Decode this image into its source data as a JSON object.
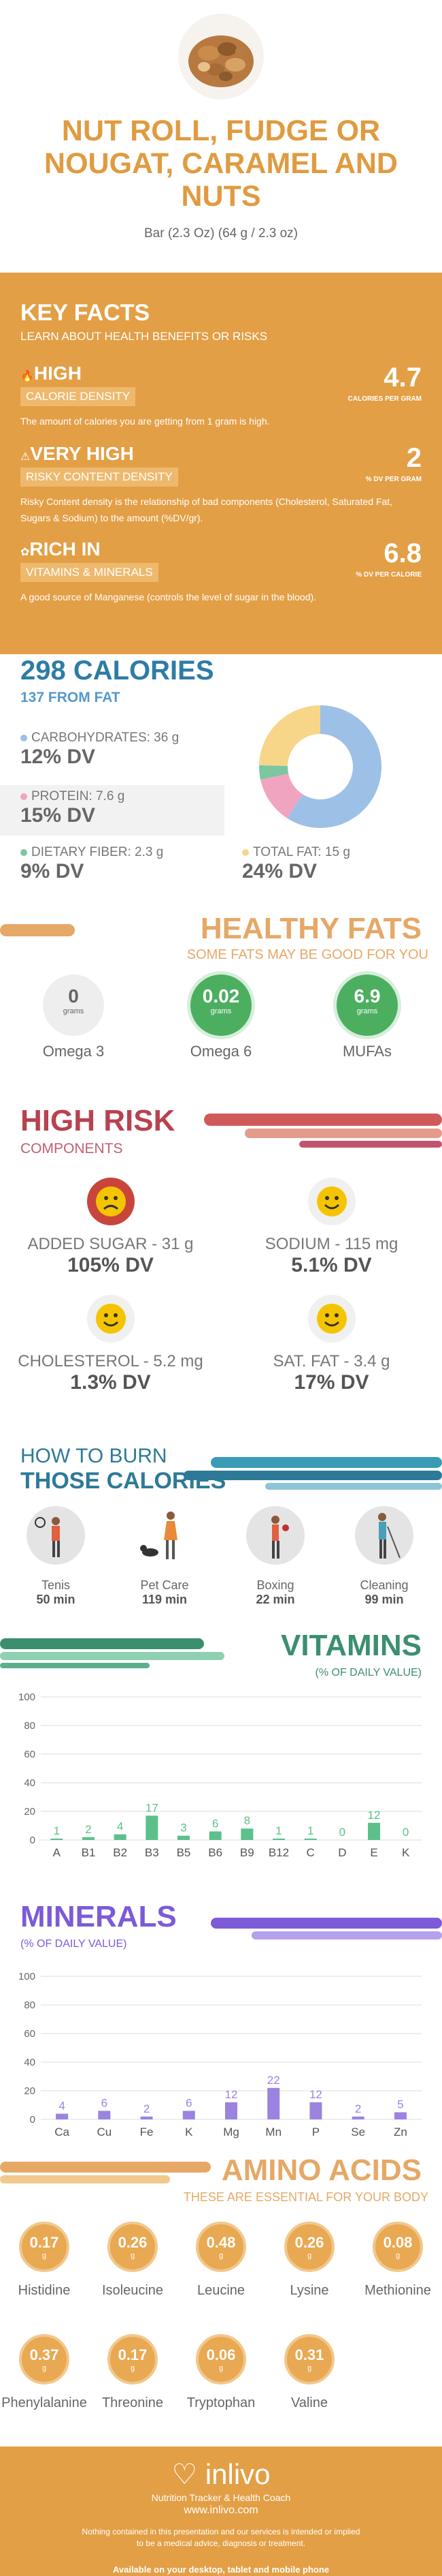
{
  "header": {
    "title_line1": "NUT ROLL, FUDGE OR",
    "title_line2": "NOUGAT, CARAMEL AND",
    "title_line3": "NUTS",
    "serving": "Bar (2.3 Oz) (64 g / 2.3 oz)"
  },
  "key_facts": {
    "heading": "KEY FACTS",
    "subheading": "LEARN ABOUT HEALTH BENEFITS OR RISKS",
    "facts": [
      {
        "label": "HIGH",
        "sublabel": "CALORIE DENSITY",
        "value": "4.7",
        "unit": "CALORIES PER GRAM",
        "desc": "The amount of calories you are getting from 1 gram is high."
      },
      {
        "label": "VERY HIGH",
        "sublabel": "RISKY CONTENT DENSITY",
        "value": "2",
        "unit": "% DV PER GRAM",
        "desc": "Risky Content density is the relationship of bad components (Cholesterol, Saturated Fat, Sugars & Sodium) to the amount (%DV/gr)."
      },
      {
        "label": "RICH  IN",
        "sublabel": "VITAMINS & MINERALS",
        "value": "6.8",
        "unit": "% DV PER CALORIE",
        "desc": "A good source of Manganese (controls the level of sugar in the blood)."
      }
    ]
  },
  "calories": {
    "heading": "298 CALORIES",
    "subheading": "137 FROM FAT",
    "macros": [
      {
        "label": "CARBOHYDRATES: 36 g",
        "dv": "12% DV",
        "color": "#9dc0e6"
      },
      {
        "label": "PROTEIN: 7.6 g",
        "dv": "15% DV",
        "color": "#f0a4c0"
      },
      {
        "label": "DIETARY FIBER: 2.3 g",
        "dv": "9% DV",
        "color": "#7cc6a0"
      },
      {
        "label": "TOTAL FAT: 15 g",
        "dv": "24% DV",
        "color": "#f7d68a"
      }
    ]
  },
  "healthy_fats": {
    "heading": "HEALTHY FATS",
    "subheading": "SOME FATS MAY BE GOOD FOR YOU",
    "items": [
      {
        "value": "0",
        "unit": "grams",
        "name": "Omega 3",
        "color": "#eeeeee",
        "text": "#666666"
      },
      {
        "value": "0.02",
        "unit": "grams",
        "name": "Omega 6",
        "color": "#4caf60",
        "text": "#ffffff"
      },
      {
        "value": "6.9",
        "unit": "grams",
        "name": "MUFAs",
        "color": "#4caf60",
        "text": "#ffffff"
      }
    ]
  },
  "high_risk": {
    "heading": "HIGH RISK",
    "subheading": "COMPONENTS",
    "items": [
      {
        "name": "ADDED SUGAR - 31 g",
        "dv": "105% DV",
        "face": "sad"
      },
      {
        "name": "SODIUM - 115 mg",
        "dv": "5.1% DV",
        "face": "happy"
      },
      {
        "name": "CHOLESTEROL - 5.2 mg",
        "dv": "1.3% DV",
        "face": "happy"
      },
      {
        "name": "SAT. FAT - 3.4 g",
        "dv": "17% DV",
        "face": "happy"
      }
    ]
  },
  "burn": {
    "heading1": "HOW TO BURN",
    "heading2": "THOSE CALORIES",
    "activities": [
      {
        "name": "Tenis",
        "time": "50 min",
        "icon": "tennis-player-icon"
      },
      {
        "name": "Pet Care",
        "time": "119 min",
        "icon": "dog-walker-icon"
      },
      {
        "name": "Boxing",
        "time": "22 min",
        "icon": "boxer-icon"
      },
      {
        "name": "Cleaning",
        "time": "99 min",
        "icon": "cleaner-icon"
      }
    ]
  },
  "vitamins": {
    "heading": "VITAMINS",
    "subheading": "(% OF DAILY VALUE)"
  },
  "minerals": {
    "heading": "MINERALS",
    "subheading": "(% OF DAILY VALUE)"
  },
  "amino": {
    "heading": "AMINO ACIDS",
    "subheading": "THESE ARE ESSENTIAL FOR YOUR BODY",
    "unit": "g",
    "items": [
      {
        "value": "0.17",
        "name": "Histidine"
      },
      {
        "value": "0.26",
        "name": "Isoleucine"
      },
      {
        "value": "0.48",
        "name": "Leucine"
      },
      {
        "value": "0.26",
        "name": "Lysine"
      },
      {
        "value": "0.08",
        "name": "Methionine"
      },
      {
        "value": "0.37",
        "name": "Phenylalanine"
      },
      {
        "value": "0.17",
        "name": "Threonine"
      },
      {
        "value": "0.06",
        "name": "Tryptophan"
      },
      {
        "value": "0.31",
        "name": "Valine"
      }
    ]
  },
  "footer": {
    "brand": "inlivo",
    "tagline": "Nutrition Tracker & Health Coach",
    "url": "www.inlivo.com",
    "disclaimer1": "Nothing contained in this presentation and our services is intended or implied",
    "disclaimer2": "to be a medical advice, diagnosis or treatment.",
    "available": "Available on your desktop, tablet and mobile phone"
  },
  "chart_data": [
    {
      "type": "pie",
      "categories": [
        "CARBOHYDRATES",
        "PROTEIN",
        "DIETARY FIBER",
        "TOTAL FAT"
      ],
      "values": [
        36,
        7.6,
        2.3,
        15
      ],
      "colors": [
        "#9dc0e6",
        "#f0a4c0",
        "#7cc6a0",
        "#f7d68a"
      ]
    },
    {
      "type": "bar",
      "title": "VITAMINS",
      "categories": [
        "A",
        "B1",
        "B2",
        "B3",
        "B5",
        "B6",
        "B9",
        "B12",
        "C",
        "D",
        "E",
        "K"
      ],
      "values": [
        1,
        2,
        4,
        17,
        3,
        6,
        8,
        1,
        1,
        0,
        12,
        0
      ],
      "ylim": [
        0,
        100
      ],
      "yticks": [
        0,
        20,
        40,
        60,
        80,
        100
      ],
      "color": "#5cc08a"
    },
    {
      "type": "bar",
      "title": "MINERALS",
      "categories": [
        "Ca",
        "Cu",
        "Fe",
        "K",
        "Mg",
        "Mn",
        "P",
        "Se",
        "Zn"
      ],
      "values": [
        4,
        6,
        2,
        6,
        12,
        22,
        12,
        2,
        5
      ],
      "ylim": [
        0,
        100
      ],
      "yticks": [
        0,
        20,
        40,
        60,
        80,
        100
      ],
      "color": "#9b83e0"
    }
  ]
}
